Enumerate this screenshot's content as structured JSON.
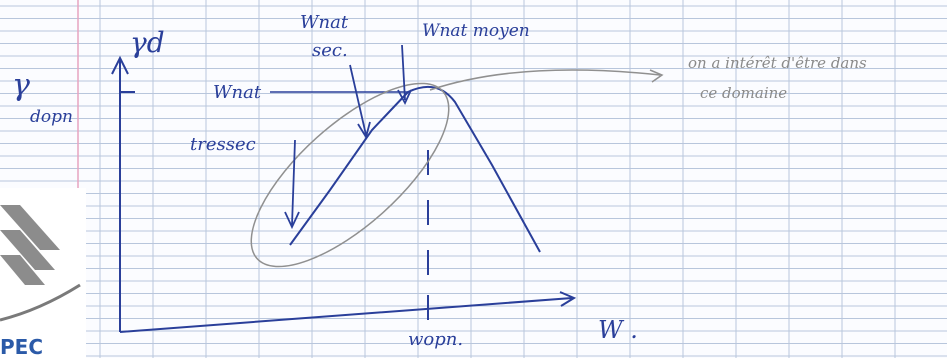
{
  "labels": {
    "y_axis": "γd",
    "left_symbol": "γ",
    "left_subscript": "dopn",
    "wnat_sec_top": "Wnat",
    "wnat_sec_bottom": "sec.",
    "wnat_moyen": "Wnat moyen",
    "wnat": "Wnat",
    "tressec": "tressec",
    "note_line_1": "on a intérêt d'être dans",
    "note_line_2": "ce domaine",
    "wopn": "wopn.",
    "x_axis": "W ."
  },
  "logo": "PEC"
}
